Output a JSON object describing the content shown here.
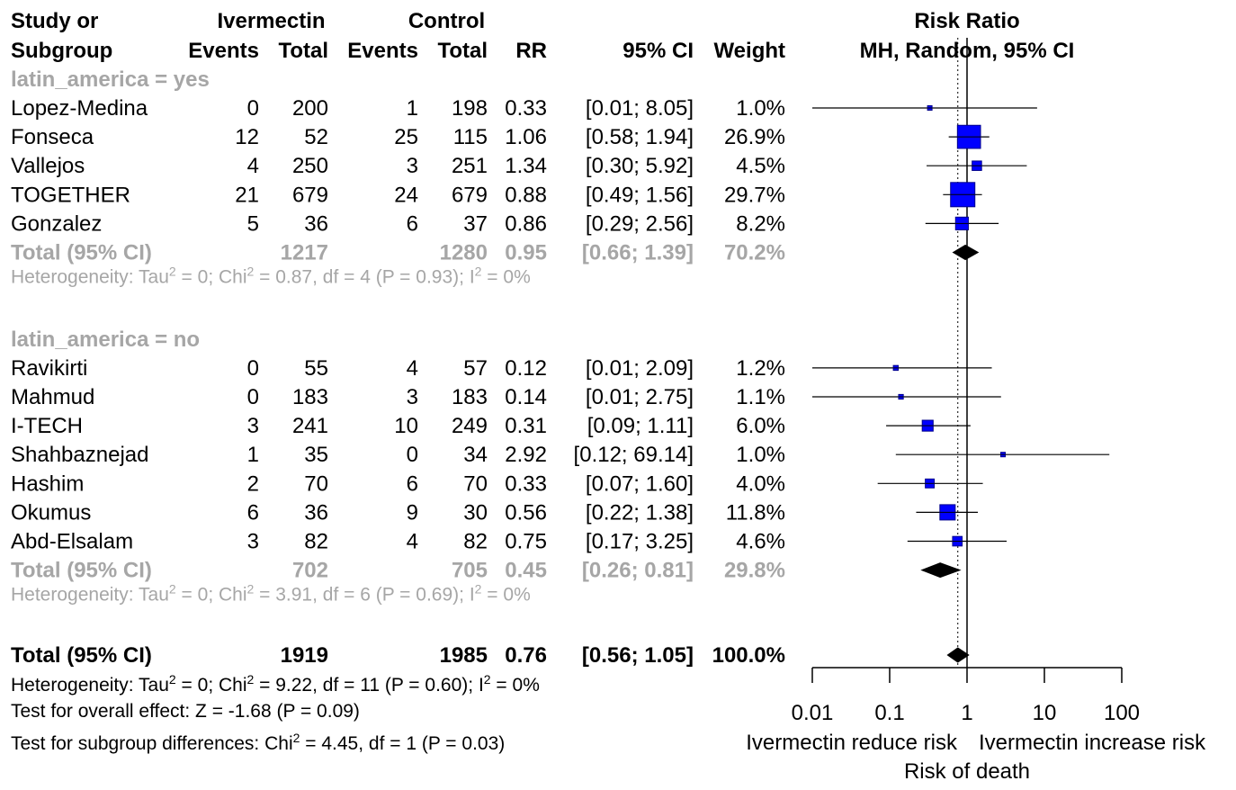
{
  "header": {
    "study_line1": "Study or",
    "study_line2": "Subgroup",
    "treat_group": "Ivermectin",
    "ctrl_group": "Control",
    "events": "Events",
    "total": "Total",
    "rr": "RR",
    "ci": "95% CI",
    "weight": "Weight",
    "plot_line1": "Risk Ratio",
    "plot_line2": "MH, Random, 95% CI"
  },
  "chart_data": {
    "type": "forest",
    "scale": "log",
    "x_ticks": [
      0.01,
      0.1,
      1,
      10,
      100
    ],
    "x_tick_labels": [
      "0.01",
      "0.1",
      "1",
      "10",
      "100"
    ],
    "reference_line": 1,
    "pooled_line": 0.76,
    "left_label": "Ivermectin reduce risk",
    "right_label": "Ivermectin increase risk",
    "xlabel": "Risk of death",
    "subgroups": [
      {
        "label": "latin_america = yes",
        "studies": [
          {
            "name": "Lopez-Medina",
            "e1": "0",
            "n1": "200",
            "e2": "1",
            "n2": "198",
            "rr": 0.33,
            "lo": 0.01,
            "hi": 8.05,
            "rr_text": "0.33",
            "ci_text": "[0.01;  8.05]",
            "weight": 1.0,
            "weight_text": "1.0%"
          },
          {
            "name": "Fonseca",
            "e1": "12",
            "n1": "52",
            "e2": "25",
            "n2": "115",
            "rr": 1.06,
            "lo": 0.58,
            "hi": 1.94,
            "rr_text": "1.06",
            "ci_text": "[0.58;  1.94]",
            "weight": 26.9,
            "weight_text": "26.9%"
          },
          {
            "name": "Vallejos",
            "e1": "4",
            "n1": "250",
            "e2": "3",
            "n2": "251",
            "rr": 1.34,
            "lo": 0.3,
            "hi": 5.92,
            "rr_text": "1.34",
            "ci_text": "[0.30;  5.92]",
            "weight": 4.5,
            "weight_text": "4.5%"
          },
          {
            "name": "TOGETHER",
            "e1": "21",
            "n1": "679",
            "e2": "24",
            "n2": "679",
            "rr": 0.88,
            "lo": 0.49,
            "hi": 1.56,
            "rr_text": "0.88",
            "ci_text": "[0.49;  1.56]",
            "weight": 29.7,
            "weight_text": "29.7%"
          },
          {
            "name": "Gonzalez",
            "e1": "5",
            "n1": "36",
            "e2": "6",
            "n2": "37",
            "rr": 0.86,
            "lo": 0.29,
            "hi": 2.56,
            "rr_text": "0.86",
            "ci_text": "[0.29;  2.56]",
            "weight": 8.2,
            "weight_text": "8.2%"
          }
        ],
        "total": {
          "label": "Total (95% CI)",
          "n1": "1217",
          "n2": "1280",
          "rr": 0.95,
          "lo": 0.66,
          "hi": 1.39,
          "rr_text": "0.95",
          "ci_text": "[0.66;  1.39]",
          "weight_text": "70.2%"
        },
        "heterogeneity": "Heterogeneity: Tau² = 0; Chi² = 0.87, df = 4 (P = 0.93); I² = 0%"
      },
      {
        "label": "latin_america = no",
        "studies": [
          {
            "name": "Ravikirti",
            "e1": "0",
            "n1": "55",
            "e2": "4",
            "n2": "57",
            "rr": 0.12,
            "lo": 0.01,
            "hi": 2.09,
            "rr_text": "0.12",
            "ci_text": "[0.01;  2.09]",
            "weight": 1.2,
            "weight_text": "1.2%"
          },
          {
            "name": "Mahmud",
            "e1": "0",
            "n1": "183",
            "e2": "3",
            "n2": "183",
            "rr": 0.14,
            "lo": 0.01,
            "hi": 2.75,
            "rr_text": "0.14",
            "ci_text": "[0.01;  2.75]",
            "weight": 1.1,
            "weight_text": "1.1%"
          },
          {
            "name": "I-TECH",
            "e1": "3",
            "n1": "241",
            "e2": "10",
            "n2": "249",
            "rr": 0.31,
            "lo": 0.09,
            "hi": 1.11,
            "rr_text": "0.31",
            "ci_text": "[0.09;  1.11]",
            "weight": 6.0,
            "weight_text": "6.0%"
          },
          {
            "name": "Shahbaznejad",
            "e1": "1",
            "n1": "35",
            "e2": "0",
            "n2": "34",
            "rr": 2.92,
            "lo": 0.12,
            "hi": 69.14,
            "rr_text": "2.92",
            "ci_text": "[0.12; 69.14]",
            "weight": 1.0,
            "weight_text": "1.0%"
          },
          {
            "name": "Hashim",
            "e1": "2",
            "n1": "70",
            "e2": "6",
            "n2": "70",
            "rr": 0.33,
            "lo": 0.07,
            "hi": 1.6,
            "rr_text": "0.33",
            "ci_text": "[0.07;  1.60]",
            "weight": 4.0,
            "weight_text": "4.0%"
          },
          {
            "name": "Okumus",
            "e1": "6",
            "n1": "36",
            "e2": "9",
            "n2": "30",
            "rr": 0.56,
            "lo": 0.22,
            "hi": 1.38,
            "rr_text": "0.56",
            "ci_text": "[0.22;  1.38]",
            "weight": 11.8,
            "weight_text": "11.8%"
          },
          {
            "name": "Abd-Elsalam",
            "e1": "3",
            "n1": "82",
            "e2": "4",
            "n2": "82",
            "rr": 0.75,
            "lo": 0.17,
            "hi": 3.25,
            "rr_text": "0.75",
            "ci_text": "[0.17;  3.25]",
            "weight": 4.6,
            "weight_text": "4.6%"
          }
        ],
        "total": {
          "label": "Total (95% CI)",
          "n1": "702",
          "n2": "705",
          "rr": 0.45,
          "lo": 0.26,
          "hi": 0.81,
          "rr_text": "0.45",
          "ci_text": "[0.26;  0.81]",
          "weight_text": "29.8%"
        },
        "heterogeneity": "Heterogeneity: Tau² = 0; Chi² = 3.91, df = 6 (P = 0.69); I² = 0%"
      }
    ],
    "overall": {
      "label": "Total (95% CI)",
      "n1": "1919",
      "n2": "1985",
      "rr": 0.76,
      "lo": 0.56,
      "hi": 1.05,
      "rr_text": "0.76",
      "ci_text": "[0.56;  1.05]",
      "weight_text": "100.0%"
    },
    "overall_heterogeneity": "Heterogeneity: Tau² = 0; Chi² = 9.22, df = 11 (P = 0.60); I² = 0%",
    "overall_effect": "Test for overall effect: Z = -1.68 (P = 0.09)",
    "subgroup_test": "Test for subgroup differences: Chi² = 4.45, df = 1 (P = 0.03)"
  },
  "colors": {
    "text": "#000000",
    "gray": "#a6a6a6",
    "square_fill": "#0000ff",
    "square_stroke": "#00008b",
    "diamond": "#000000"
  }
}
